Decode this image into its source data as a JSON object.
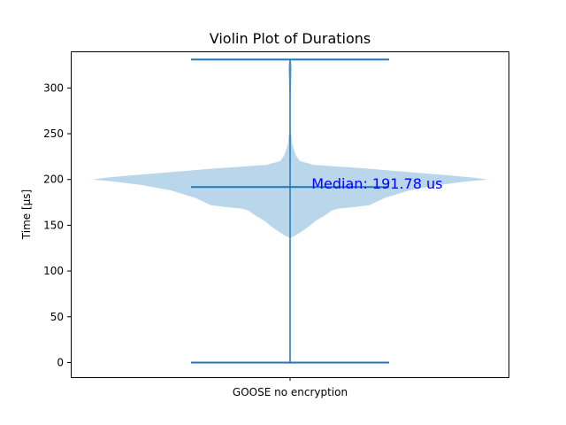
{
  "chart_data": {
    "type": "violin",
    "title": "Violin Plot of Durations",
    "ylabel": "Time [μs]",
    "xlabel": "",
    "categories": [
      "GOOSE no encryption"
    ],
    "ylim": [
      -16,
      340
    ],
    "yticks": [
      0,
      50,
      100,
      150,
      200,
      250,
      300
    ],
    "grid": false,
    "series": [
      {
        "category": "GOOSE no encryption",
        "min": 0,
        "max": 331,
        "median": 191.78,
        "density": [
          [
            136,
            0.0
          ],
          [
            138,
            0.02
          ],
          [
            142,
            0.05
          ],
          [
            148,
            0.09
          ],
          [
            155,
            0.13
          ],
          [
            160,
            0.17
          ],
          [
            163,
            0.19
          ],
          [
            166,
            0.21
          ],
          [
            168,
            0.24
          ],
          [
            170,
            0.33
          ],
          [
            172,
            0.4
          ],
          [
            180,
            0.48
          ],
          [
            188,
            0.6
          ],
          [
            194,
            0.75
          ],
          [
            198,
            0.9
          ],
          [
            200,
            1.0
          ],
          [
            202,
            0.93
          ],
          [
            205,
            0.78
          ],
          [
            208,
            0.6
          ],
          [
            212,
            0.38
          ],
          [
            216,
            0.12
          ],
          [
            220,
            0.05
          ],
          [
            226,
            0.03
          ],
          [
            232,
            0.02
          ],
          [
            240,
            0.01
          ],
          [
            248,
            0.007
          ],
          [
            252,
            0.0
          ]
        ],
        "density_upper": [
          [
            288,
            0.0
          ],
          [
            295,
            0.004
          ],
          [
            305,
            0.006
          ],
          [
            315,
            0.008
          ],
          [
            322,
            0.01
          ],
          [
            328,
            0.006
          ],
          [
            331,
            0.0
          ]
        ]
      }
    ],
    "annotations": [
      {
        "text": "Median: 191.78 us",
        "x": 0.55,
        "y": 195,
        "color": "#0000ff"
      }
    ],
    "colors": {
      "body": "#bad6ea",
      "lines": "#1f77b4",
      "annotation": "#0000ff",
      "axes": "#000000"
    }
  }
}
